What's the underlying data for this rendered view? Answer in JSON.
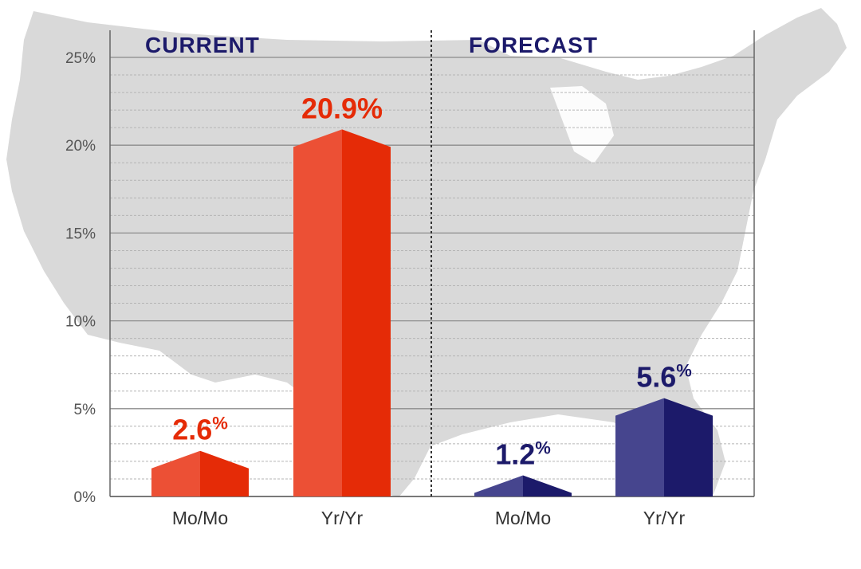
{
  "chart_data": {
    "type": "bar",
    "ylim": [
      0,
      25
    ],
    "yticks": [
      "0%",
      "5%",
      "10%",
      "15%",
      "20%",
      "25%"
    ],
    "grid": true,
    "sections": [
      {
        "title": "CURRENT",
        "color": "#1c1a6a",
        "bars": [
          {
            "category": "Mo/Mo",
            "value": 2.6,
            "label": "2.6",
            "unit": "%",
            "unit_style": "superscript",
            "color_light": "#ec5035",
            "color_dark": "#e52b07",
            "label_color": "#e52b07"
          },
          {
            "category": "Yr/Yr",
            "value": 20.9,
            "label": "20.9",
            "unit": "%",
            "unit_style": "inline",
            "color_light": "#ec5035",
            "color_dark": "#e52b07",
            "label_color": "#e52b07"
          }
        ]
      },
      {
        "title": "FORECAST",
        "color": "#1c1a6a",
        "bars": [
          {
            "category": "Mo/Mo",
            "value": 1.2,
            "label": "1.2",
            "unit": "%",
            "unit_style": "superscript",
            "color_light": "#46458e",
            "color_dark": "#1c1a6a",
            "label_color": "#1c1a6a"
          },
          {
            "category": "Yr/Yr",
            "value": 5.6,
            "label": "5.6",
            "unit": "%",
            "unit_style": "superscript",
            "color_light": "#46458e",
            "color_dark": "#1c1a6a",
            "label_color": "#1c1a6a"
          }
        ]
      }
    ]
  },
  "colors": {
    "map": "#d9d9d9",
    "grid_major": "#8c8c8c",
    "grid_minor": "#b5b5b5",
    "axis": "#666666",
    "divider": "#333333"
  }
}
